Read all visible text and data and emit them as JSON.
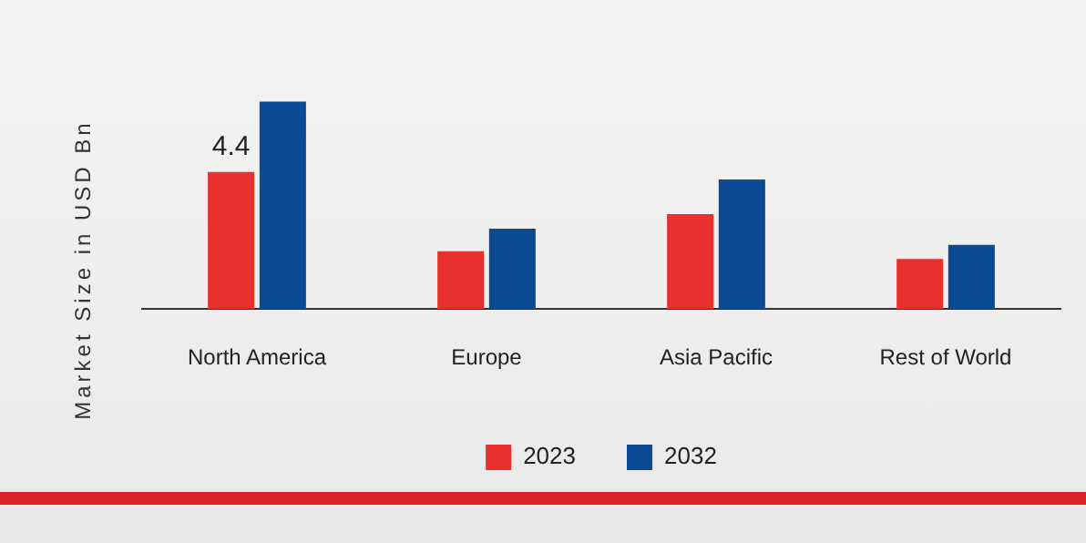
{
  "chart_data": {
    "type": "bar",
    "ylabel": "Market Size in USD Bn",
    "tick_labels": "x",
    "categories": [
      "North America",
      "Europe",
      "Asia Pacific",
      "Rest of World"
    ],
    "series": [
      {
        "name": "2023",
        "color": "#e8302f",
        "values": [
          4.4,
          1.86,
          3.05,
          1.61
        ],
        "value_labels": [
          "4.4",
          null,
          null,
          null
        ]
      },
      {
        "name": "2032",
        "color": "#0d4a94",
        "values": [
          6.66,
          2.58,
          4.16,
          2.06
        ]
      }
    ],
    "legend": "bottom",
    "grid": false
  }
}
